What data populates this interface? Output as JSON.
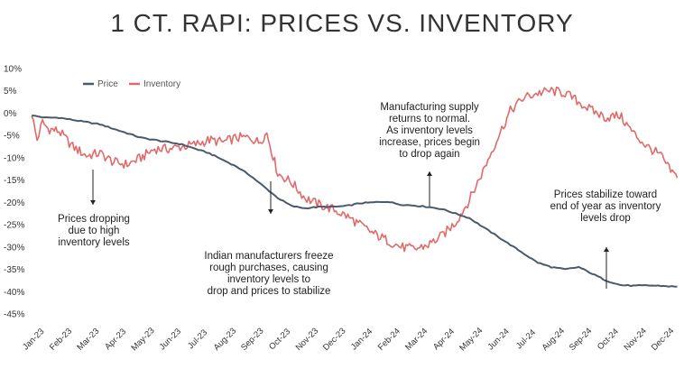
{
  "title": "1 CT. RAPI: PRICES VS. INVENTORY",
  "chart_data": {
    "type": "line",
    "title": "1 CT. RAPI: PRICES VS. INVENTORY",
    "xlabel": "",
    "ylabel": "",
    "ylim": [
      -45,
      10
    ],
    "y_ticks": [
      "10%",
      "5%",
      "0%",
      "-5%",
      "-10%",
      "-15%",
      "-20%",
      "-25%",
      "-30%",
      "-35%",
      "-40%",
      "-45%"
    ],
    "categories": [
      "Jan-23",
      "Feb-23",
      "Mar-23",
      "Apr-23",
      "May-23",
      "Jun-23",
      "Jul-23",
      "Aug-23",
      "Sep-23",
      "Oct-23",
      "Nov-23",
      "Dec-23",
      "Jan-24",
      "Feb-24",
      "Mar-24",
      "Apr-24",
      "May-24",
      "Jun-24",
      "Jul-24",
      "Aug-24",
      "Sep-24",
      "Oct-24",
      "Nov-24",
      "Dec-24"
    ],
    "series": [
      {
        "name": "Price",
        "color": "#4a5a6a",
        "x": [
          0,
          0.5,
          1,
          1.5,
          2,
          2.5,
          3,
          3.5,
          4,
          4.5,
          5,
          5.5,
          6,
          6.5,
          7,
          7.5,
          8,
          8.5,
          9,
          9.5,
          10,
          10.5,
          11,
          11.5,
          12,
          12.5,
          13,
          13.5,
          14,
          14.5,
          15,
          15.5,
          16,
          16.5,
          17,
          17.5,
          18,
          18.5,
          19,
          19.5,
          20,
          20.5,
          21,
          21.5,
          22,
          22.5,
          23,
          23.3,
          23.6
        ],
        "values": [
          -0.5,
          -1.0,
          -1.0,
          -1.5,
          -2.0,
          -2.5,
          -3.5,
          -4.5,
          -5.5,
          -6.0,
          -6.5,
          -7.0,
          -8.0,
          -9.0,
          -10.5,
          -12.0,
          -14.0,
          -16.5,
          -19.0,
          -20.8,
          -21.3,
          -21.0,
          -21.0,
          -20.8,
          -20.2,
          -20.0,
          -19.8,
          -20.5,
          -20.7,
          -21.0,
          -21.5,
          -22.5,
          -23.5,
          -25.5,
          -27.5,
          -29.5,
          -31.5,
          -33.5,
          -34.5,
          -35.0,
          -34.5,
          -36.0,
          -37.5,
          -38.5,
          -38.7,
          -38.6,
          -38.7,
          -38.8,
          -38.9
        ]
      },
      {
        "name": "Inventory",
        "color": "#e06a6a",
        "x": [
          0,
          0.2,
          0.4,
          0.6,
          1,
          1.5,
          2,
          2.5,
          3,
          3.5,
          4,
          4.5,
          5,
          5.5,
          6,
          6.5,
          7,
          7.5,
          8,
          8.3,
          8.6,
          9,
          9.5,
          10,
          10.5,
          11,
          11.5,
          12,
          12.5,
          13,
          13.5,
          14,
          14.5,
          15,
          15.5,
          16,
          16.5,
          17,
          17.5,
          18,
          18.5,
          19,
          19.5,
          20,
          20.5,
          21,
          21.5,
          22,
          22.5,
          23,
          23.3,
          23.6
        ],
        "values": [
          0,
          -6.0,
          -2.0,
          -3.5,
          -4.0,
          -7.5,
          -9.5,
          -9.0,
          -11.0,
          -11.5,
          -10.0,
          -8.0,
          -8.0,
          -7.5,
          -7.0,
          -6.0,
          -6.5,
          -5.5,
          -5.5,
          -6.5,
          -4.5,
          -13.5,
          -15.5,
          -19.0,
          -20.5,
          -21.5,
          -23.0,
          -25.0,
          -27.0,
          -28.5,
          -30.0,
          -30.5,
          -29.5,
          -27.5,
          -24.5,
          -19.5,
          -13.0,
          -6.0,
          0.5,
          3.5,
          4.5,
          5.0,
          4.5,
          2.5,
          0.5,
          -1.0,
          -0.5,
          -4.5,
          -7.5,
          -9.5,
          -12.5,
          -14.5
        ]
      }
    ],
    "legend": "top-left",
    "annotations": [
      {
        "lines": [
          "Prices dropping",
          "due to high",
          "inventory levels"
        ]
      },
      {
        "lines": [
          "Indian manufacturers freeze",
          "rough purchases, causing",
          "inventory levels to",
          "drop and prices to stabilize"
        ]
      },
      {
        "lines": [
          "Manufacturing supply",
          "returns to normal.",
          "As inventory levels",
          "increase, prices begin",
          "to drop again"
        ]
      },
      {
        "lines": [
          "Prices stabilize toward",
          "end of year as inventory",
          "levels drop"
        ]
      }
    ]
  }
}
